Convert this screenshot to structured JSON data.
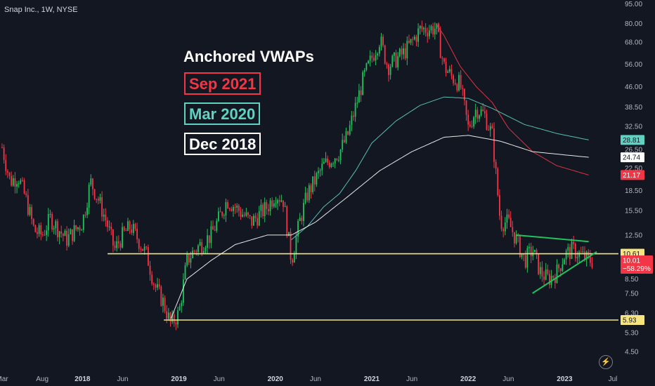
{
  "header": {
    "symbol": "Snap Inc., 1W, NYSE"
  },
  "legend": {
    "title": "Anchored VWAPs",
    "items": [
      {
        "label": "Sep 2021",
        "color": "#f23645"
      },
      {
        "label": "Mar 2020",
        "color": "#5ed3c2"
      },
      {
        "label": "Dec 2018",
        "color": "#ffffff"
      }
    ]
  },
  "price_tags": {
    "mar2020_vwap": {
      "value": "28.81",
      "color": "#5ed3c2"
    },
    "dec2018_vwap": {
      "value": "24.74",
      "color": "#ffffff"
    },
    "sep2021_vwap": {
      "value": "21.17",
      "color": "#f23645"
    },
    "resistance": {
      "value": "10.61",
      "color": "#f5e47f"
    },
    "last_price": {
      "value": "10.01",
      "change": "−58.29%",
      "color": "#f23645"
    },
    "support": {
      "value": "5.93",
      "color": "#f5e47f"
    }
  },
  "chart_data": {
    "type": "candlestick",
    "y_scale": "log",
    "ylim": [
      4.2,
      96
    ],
    "y_ticks": [
      "95.00",
      "80.00",
      "68.00",
      "56.00",
      "46.00",
      "38.50",
      "32.50",
      "26.50",
      "22.50",
      "18.50",
      "15.50",
      "12.50",
      "10.50",
      "8.50",
      "7.50",
      "6.30",
      "5.30",
      "4.50"
    ],
    "x_ticks": [
      {
        "label": "Mar",
        "date": "2017-03",
        "bold": false
      },
      {
        "label": "Aug",
        "date": "2017-08",
        "bold": false
      },
      {
        "label": "2018",
        "date": "2018-01",
        "bold": true
      },
      {
        "label": "Jun",
        "date": "2018-06",
        "bold": false
      },
      {
        "label": "2019",
        "date": "2019-01",
        "bold": true
      },
      {
        "label": "Jun",
        "date": "2019-06",
        "bold": false
      },
      {
        "label": "2020",
        "date": "2020-01",
        "bold": true
      },
      {
        "label": "Jun",
        "date": "2020-06",
        "bold": false
      },
      {
        "label": "2021",
        "date": "2021-01",
        "bold": true
      },
      {
        "label": "Jun",
        "date": "2021-06",
        "bold": false
      },
      {
        "label": "2022",
        "date": "2022-01",
        "bold": true
      },
      {
        "label": "Jun",
        "date": "2022-06",
        "bold": false
      },
      {
        "label": "2023",
        "date": "2023-01",
        "bold": true
      },
      {
        "label": "Jul",
        "date": "2023-07",
        "bold": false
      }
    ],
    "price_path": [
      [
        "2017-03",
        27
      ],
      [
        "2017-04",
        20
      ],
      [
        "2017-05",
        21
      ],
      [
        "2017-06",
        17
      ],
      [
        "2017-07",
        13
      ],
      [
        "2017-08",
        12.5
      ],
      [
        "2017-09",
        14.5
      ],
      [
        "2017-11",
        12
      ],
      [
        "2018-01",
        14
      ],
      [
        "2018-02",
        20
      ],
      [
        "2018-03",
        17
      ],
      [
        "2018-04",
        14
      ],
      [
        "2018-05",
        11
      ],
      [
        "2018-06",
        12.5
      ],
      [
        "2018-07",
        13.5
      ],
      [
        "2018-09",
        10.5
      ],
      [
        "2018-10",
        8
      ],
      [
        "2018-11",
        7
      ],
      [
        "2018-12",
        5.7
      ],
      [
        "2019-01",
        6.3
      ],
      [
        "2019-02",
        10
      ],
      [
        "2019-03",
        11
      ],
      [
        "2019-05",
        12.5
      ],
      [
        "2019-06",
        14.5
      ],
      [
        "2019-07",
        17
      ],
      [
        "2019-08",
        16
      ],
      [
        "2019-10",
        14
      ],
      [
        "2019-12",
        16
      ],
      [
        "2020-01",
        18
      ],
      [
        "2020-02",
        17
      ],
      [
        "2020-03",
        10
      ],
      [
        "2020-04",
        14
      ],
      [
        "2020-05",
        18
      ],
      [
        "2020-07",
        23
      ],
      [
        "2020-09",
        26
      ],
      [
        "2020-10",
        30
      ],
      [
        "2020-12",
        50
      ],
      [
        "2021-02",
        70
      ],
      [
        "2021-03",
        55
      ],
      [
        "2021-05",
        62
      ],
      [
        "2021-06",
        68
      ],
      [
        "2021-07",
        76
      ],
      [
        "2021-09",
        77
      ],
      [
        "2021-10",
        55
      ],
      [
        "2021-11",
        50
      ],
      [
        "2021-12",
        47
      ],
      [
        "2022-01",
        32
      ],
      [
        "2022-02",
        38
      ],
      [
        "2022-03",
        36
      ],
      [
        "2022-04",
        30
      ],
      [
        "2022-05",
        14
      ],
      [
        "2022-06",
        14
      ],
      [
        "2022-07",
        12
      ],
      [
        "2022-08",
        10
      ],
      [
        "2022-09",
        11
      ],
      [
        "2022-10",
        9
      ],
      [
        "2022-11",
        8.5
      ],
      [
        "2022-12",
        9
      ],
      [
        "2023-01",
        10.5
      ],
      [
        "2023-02",
        11
      ],
      [
        "2023-03",
        10.5
      ],
      [
        "2023-04",
        10
      ]
    ],
    "series": [
      {
        "name": "Sep 2021",
        "color": "#f23645",
        "points": [
          [
            "2021-09",
            80
          ],
          [
            "2021-10",
            72
          ],
          [
            "2021-12",
            55
          ],
          [
            "2022-02",
            46
          ],
          [
            "2022-04",
            40
          ],
          [
            "2022-06",
            32
          ],
          [
            "2022-09",
            26
          ],
          [
            "2022-12",
            23
          ],
          [
            "2023-04",
            21.17
          ]
        ]
      },
      {
        "name": "Mar 2020",
        "color": "#5ed3c2",
        "points": [
          [
            "2020-03",
            12
          ],
          [
            "2020-05",
            13.5
          ],
          [
            "2020-07",
            16
          ],
          [
            "2020-09",
            18
          ],
          [
            "2020-11",
            22
          ],
          [
            "2021-01",
            28
          ],
          [
            "2021-04",
            34
          ],
          [
            "2021-07",
            39
          ],
          [
            "2021-10",
            42
          ],
          [
            "2022-01",
            41.5
          ],
          [
            "2022-04",
            38
          ],
          [
            "2022-08",
            33
          ],
          [
            "2022-12",
            30.5
          ],
          [
            "2023-04",
            28.81
          ]
        ]
      },
      {
        "name": "Dec 2018",
        "color": "#ffffff",
        "points": [
          [
            "2018-12",
            6.0
          ],
          [
            "2019-02",
            8.5
          ],
          [
            "2019-05",
            10
          ],
          [
            "2019-08",
            11.5
          ],
          [
            "2019-12",
            12.5
          ],
          [
            "2020-03",
            12.5
          ],
          [
            "2020-06",
            14
          ],
          [
            "2020-10",
            17.5
          ],
          [
            "2021-02",
            22
          ],
          [
            "2021-06",
            26
          ],
          [
            "2021-10",
            29.5
          ],
          [
            "2022-01",
            30
          ],
          [
            "2022-05",
            28.5
          ],
          [
            "2022-09",
            26
          ],
          [
            "2023-04",
            24.74
          ]
        ]
      }
    ],
    "horizontal_lines": [
      {
        "name": "resistance",
        "value": 10.61,
        "from": "2018-05",
        "color": "#f5e47f"
      },
      {
        "name": "support",
        "value": 5.93,
        "from": "2018-12",
        "color": "#f5e47f"
      }
    ],
    "triangle_lines": [
      {
        "name": "upper",
        "points": [
          [
            "2022-07",
            12.5
          ],
          [
            "2023-04",
            11.8
          ]
        ],
        "color": "#22c35e"
      },
      {
        "name": "lower",
        "points": [
          [
            "2022-09",
            7.5
          ],
          [
            "2023-05",
            10.8
          ]
        ],
        "color": "#22c35e"
      }
    ]
  }
}
